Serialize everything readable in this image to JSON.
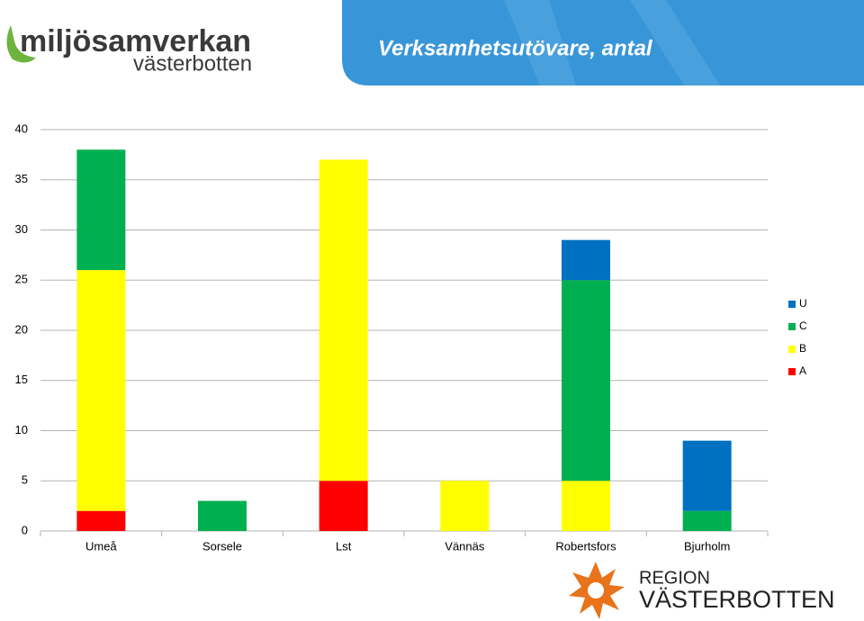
{
  "chart_data": {
    "type": "stacked-bar",
    "title": "Verksamhetsutövare, antal",
    "categories": [
      "Umeå",
      "Sorsele",
      "Lst",
      "Vännäs",
      "Robertsfors",
      "Bjurholm"
    ],
    "series": [
      {
        "name": "A",
        "color": "#ff0000",
        "values": [
          2,
          0,
          5,
          0,
          0,
          0
        ]
      },
      {
        "name": "B",
        "color": "#ffff00",
        "values": [
          24,
          0,
          32,
          5,
          5,
          0
        ]
      },
      {
        "name": "C",
        "color": "#00b050",
        "values": [
          12,
          3,
          0,
          0,
          20,
          2
        ]
      },
      {
        "name": "U",
        "color": "#0070c0",
        "values": [
          0,
          0,
          0,
          0,
          4,
          7
        ]
      }
    ],
    "ylim": [
      0,
      40
    ],
    "yticks": [
      0,
      5,
      10,
      15,
      20,
      25,
      30,
      35,
      40
    ],
    "grid": true,
    "legend": "right"
  },
  "logo_left": {
    "name": "miljösamverkan",
    "region": "västerbotten"
  },
  "logo_right": {
    "line1": "REGION",
    "line2": "VÄSTERBOTTEN"
  }
}
